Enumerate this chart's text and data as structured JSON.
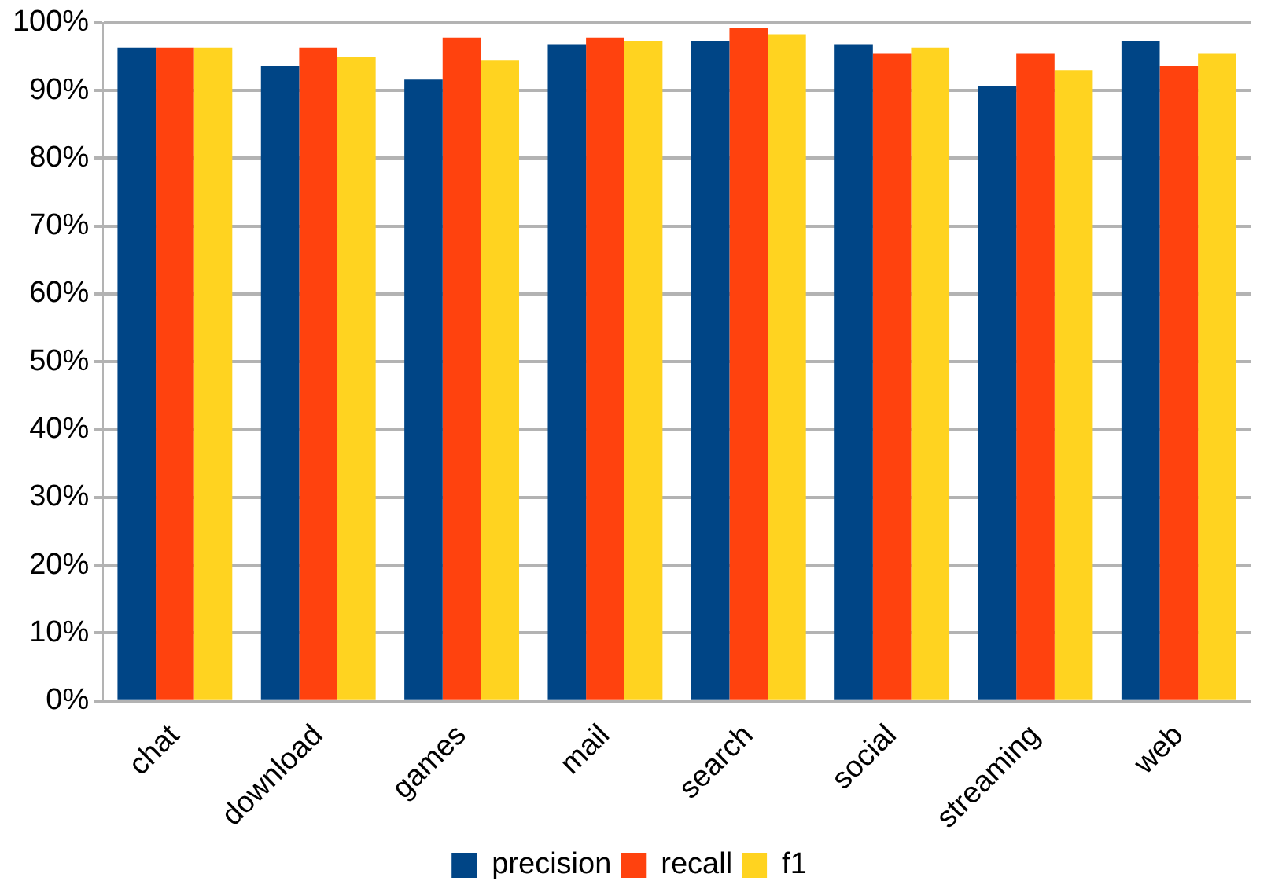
{
  "chart_data": {
    "type": "bar",
    "categories": [
      "chat",
      "download",
      "games",
      "mail",
      "search",
      "social",
      "streaming",
      "web"
    ],
    "series": [
      {
        "name": "precision",
        "color": "#004586",
        "values": [
          96.3,
          93.6,
          91.6,
          96.8,
          97.3,
          96.8,
          90.7,
          97.3
        ]
      },
      {
        "name": "recall",
        "color": "#ff420e",
        "values": [
          96.3,
          96.3,
          97.8,
          97.8,
          99.2,
          95.4,
          95.4,
          93.6
        ]
      },
      {
        "name": "f1",
        "color": "#ffd320",
        "values": [
          96.3,
          95.0,
          94.5,
          97.3,
          98.3,
          96.3,
          93.0,
          95.4
        ]
      }
    ],
    "ylim": [
      0,
      100
    ],
    "yticks": [
      {
        "value": 0,
        "label": "0%"
      },
      {
        "value": 10,
        "label": "10%"
      },
      {
        "value": 20,
        "label": "20%"
      },
      {
        "value": 30,
        "label": "30%"
      },
      {
        "value": 40,
        "label": "40%"
      },
      {
        "value": 50,
        "label": "50%"
      },
      {
        "value": 60,
        "label": "60%"
      },
      {
        "value": 70,
        "label": "70%"
      },
      {
        "value": 80,
        "label": "80%"
      },
      {
        "value": 90,
        "label": "90%"
      },
      {
        "value": 100,
        "label": "100%"
      }
    ],
    "grid": "y",
    "legend": "bottom"
  }
}
